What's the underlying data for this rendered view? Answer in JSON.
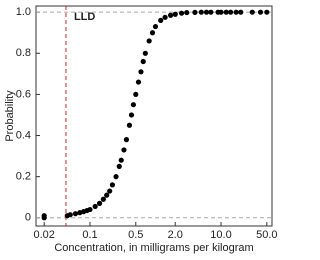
{
  "chart_data": {
    "type": "scatter",
    "x_label": "Concentration, in milligrams per kilogram",
    "y_label": "Probability",
    "x_scale": "log",
    "xlim": [
      0.015,
      60
    ],
    "ylim": [
      -0.04,
      1.03
    ],
    "xticks": [
      0.02,
      0.1,
      0.5,
      {
        "value": 2,
        "label": "2.0"
      },
      {
        "value": 10,
        "label": "10.0"
      },
      {
        "value": 50,
        "label": "50.0"
      }
    ],
    "yticks": [
      0,
      0.2,
      0.4,
      0.6,
      0.8,
      {
        "value": 1,
        "label": "1.0"
      }
    ],
    "reference_lines_y": [
      0,
      1
    ],
    "reference_line_color": "#aaaaaa",
    "vline": {
      "label": "LLD",
      "x": 0.043,
      "color": "#cc2222"
    },
    "color": "#000000",
    "x": [
      0.02,
      0.02,
      0.045,
      0.05,
      0.06,
      0.07,
      0.08,
      0.09,
      0.1,
      0.12,
      0.14,
      0.16,
      0.18,
      0.2,
      0.22,
      0.25,
      0.28,
      0.3,
      0.33,
      0.36,
      0.4,
      0.43,
      0.46,
      0.5,
      0.55,
      0.6,
      0.65,
      0.7,
      0.8,
      0.9,
      1.0,
      1.2,
      1.4,
      1.7,
      2.0,
      2.5,
      3,
      4,
      5,
      6,
      7,
      9,
      10,
      12,
      14,
      17,
      20,
      30,
      40,
      50
    ],
    "values": [
      0,
      0.01,
      0.01,
      0.015,
      0.02,
      0.025,
      0.03,
      0.035,
      0.04,
      0.055,
      0.07,
      0.09,
      0.11,
      0.13,
      0.16,
      0.2,
      0.25,
      0.28,
      0.33,
      0.38,
      0.45,
      0.5,
      0.55,
      0.6,
      0.66,
      0.71,
      0.76,
      0.8,
      0.86,
      0.9,
      0.93,
      0.96,
      0.975,
      0.985,
      0.99,
      0.995,
      0.998,
      0.999,
      1,
      1,
      1,
      1,
      1,
      1,
      1,
      1,
      1,
      1,
      1,
      1
    ]
  }
}
